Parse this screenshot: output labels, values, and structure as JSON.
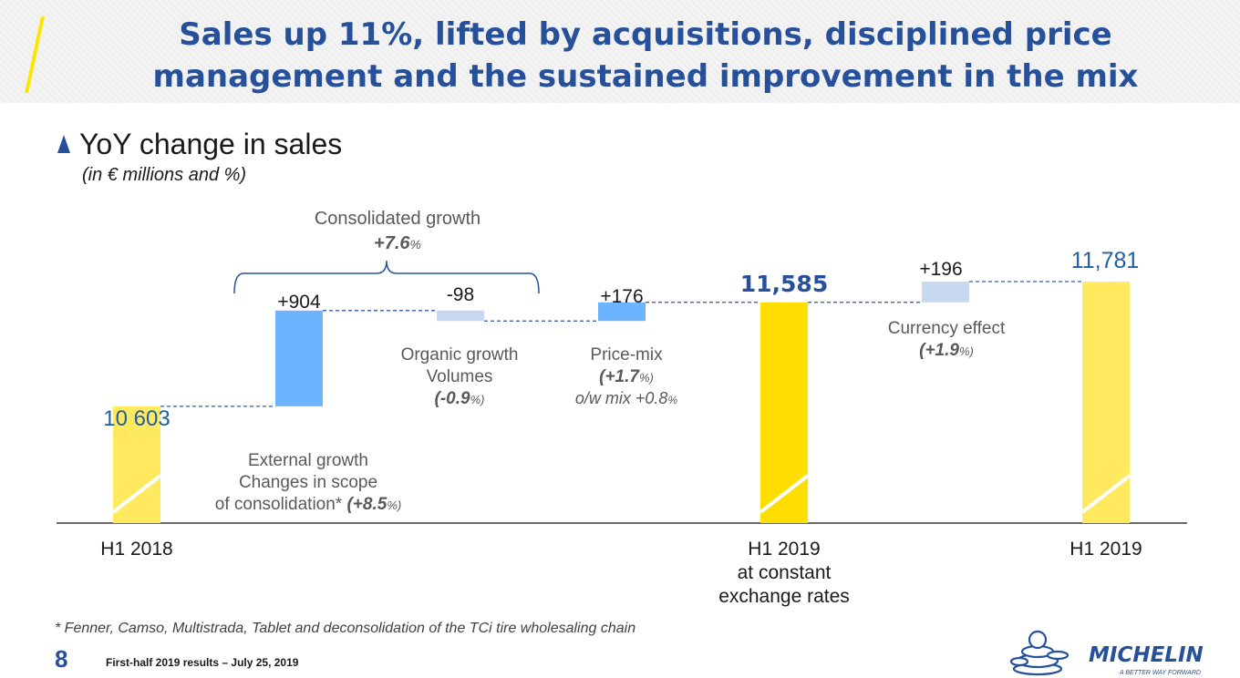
{
  "slide": {
    "title": "Sales up 11%, lifted by acquisitions, disciplined price management and the sustained improvement in the mix",
    "section_title": "YoY change in sales",
    "section_subtitle": "(in € millions and %)"
  },
  "chart_data": {
    "type": "waterfall",
    "title": "YoY change in sales",
    "subtitle": "(in € millions and %)",
    "ylim": [
      9500,
      12000
    ],
    "bars": [
      {
        "label": "H1 2018",
        "kind": "total",
        "value": 10603,
        "value_label": "10 603",
        "color": "#fee95f"
      },
      {
        "label": "External growth",
        "kind": "delta",
        "value": 904,
        "value_label": "+904",
        "color": "#6cb4fd"
      },
      {
        "label": "Organic growth Volumes",
        "kind": "delta",
        "value": -98,
        "value_label": "-98",
        "color": "#c7d9f0"
      },
      {
        "label": "Price-mix",
        "kind": "delta",
        "value": 176,
        "value_label": "+176",
        "color": "#6cb4fd"
      },
      {
        "label": "H1 2019 at constant exchange rates",
        "kind": "total",
        "value": 11585,
        "value_label": "11,585",
        "color": "#fedd00"
      },
      {
        "label": "Currency effect",
        "kind": "delta",
        "value": 196,
        "value_label": "+196",
        "color": "#c7d9f0"
      },
      {
        "label": "H1 2019",
        "kind": "total",
        "value": 11781,
        "value_label": "11,781",
        "color": "#fee95f"
      }
    ],
    "axis_labels": {
      "h1_2018": "H1 2018",
      "h1_2019_const_1": "H1 2019",
      "h1_2019_const_2": "at constant",
      "h1_2019_const_3": "exchange rates",
      "h1_2019": "H1 2019"
    },
    "annotations": {
      "consolidated_title": "Consolidated growth",
      "consolidated_value": "+7.6",
      "consolidated_unit": "%",
      "external_1": "External growth",
      "external_2": "Changes in scope",
      "external_3": "of consolidation*",
      "external_value": "(+8.5",
      "external_unit": "%)",
      "organic_1": "Organic growth",
      "organic_2": "Volumes",
      "organic_value": "(-0.9",
      "organic_unit": "%)",
      "pricemix_1": "Price-mix",
      "pricemix_value": "(+1.7",
      "pricemix_unit": "%)",
      "pricemix_mix": "o/w mix +0.8",
      "pricemix_mix_unit": "%",
      "currency_1": "Currency effect",
      "currency_value": "(+1.9",
      "currency_unit": "%)"
    }
  },
  "footnote": "* Fenner, Camso, Multistrada, Tablet and deconsolidation of the TCi tire wholesaling chain",
  "footer": {
    "page_number": "8",
    "text": "First-half 2019 results – July 25, 2019",
    "logo_text": "MICHELIN",
    "logo_tagline": "A BETTER WAY FORWARD"
  },
  "colors": {
    "brand_blue": "#27509b",
    "value_blue": "#1f5fa6",
    "michelin_yellow": "#fce500"
  }
}
